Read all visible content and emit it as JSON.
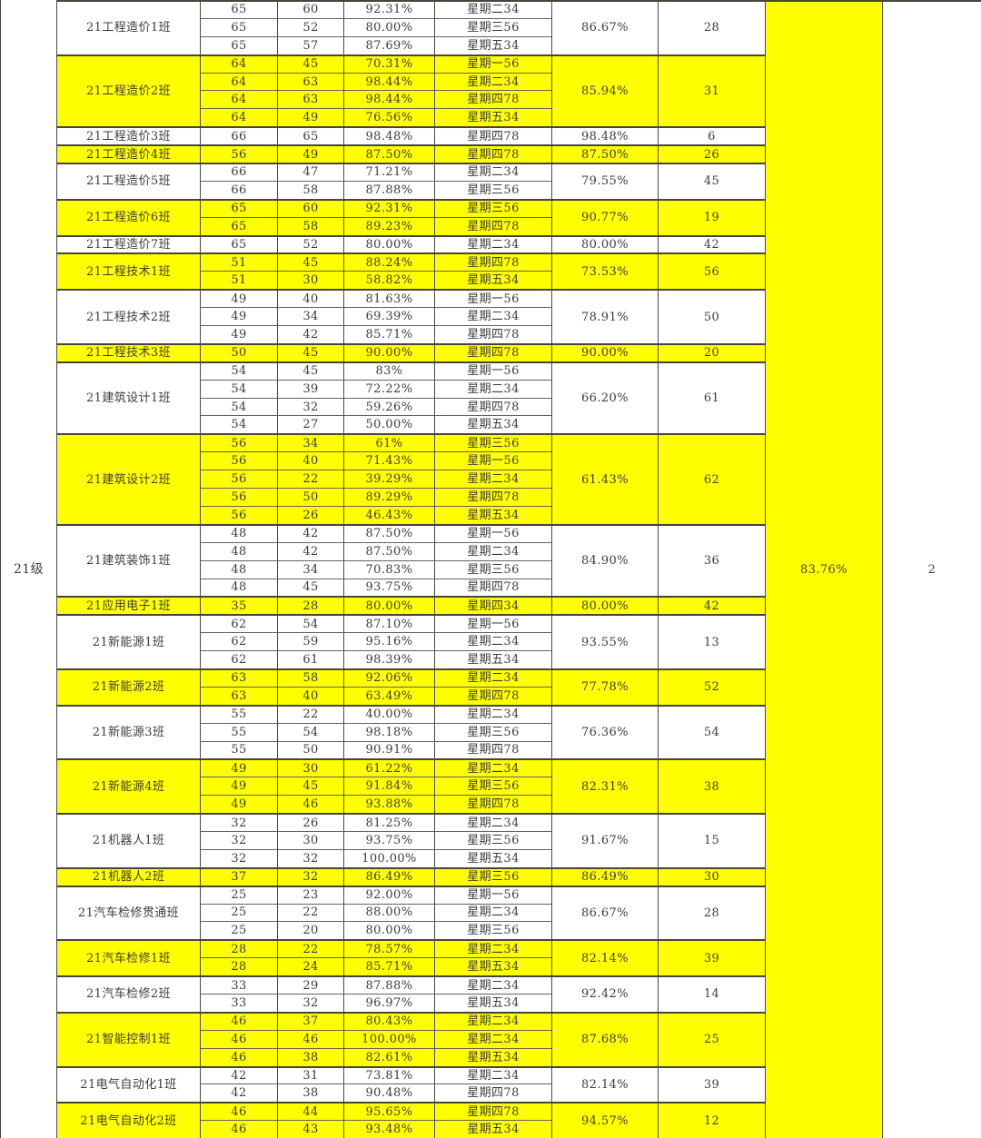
{
  "colors": {
    "highlight": "#ffff00",
    "row_default": "#ffffff",
    "grid_line": "#4b4b41"
  },
  "table": {
    "grade": {
      "label": "21级",
      "average": "83.76%",
      "rank": "2"
    },
    "groups": [
      {
        "name": "21工程造价1班",
        "highlight": false,
        "average": "86.67%",
        "rank": "28",
        "rows": [
          {
            "total": "65",
            "attended": "60",
            "rate": "92.31%",
            "day": "星期二34"
          },
          {
            "total": "65",
            "attended": "52",
            "rate": "80.00%",
            "day": "星期三56"
          },
          {
            "total": "65",
            "attended": "57",
            "rate": "87.69%",
            "day": "星期五34"
          }
        ]
      },
      {
        "name": "21工程造价2班",
        "highlight": true,
        "average": "85.94%",
        "rank": "31",
        "rows": [
          {
            "total": "64",
            "attended": "45",
            "rate": "70.31%",
            "day": "星期一56"
          },
          {
            "total": "64",
            "attended": "63",
            "rate": "98.44%",
            "day": "星期二34"
          },
          {
            "total": "64",
            "attended": "63",
            "rate": "98.44%",
            "day": "星期四78"
          },
          {
            "total": "64",
            "attended": "49",
            "rate": "76.56%",
            "day": "星期五34"
          }
        ]
      },
      {
        "name": "21工程造价3班",
        "highlight": false,
        "average": "98.48%",
        "rank": "6",
        "rows": [
          {
            "total": "66",
            "attended": "65",
            "rate": "98.48%",
            "day": "星期四78"
          }
        ]
      },
      {
        "name": "21工程造价4班",
        "highlight": true,
        "average": "87.50%",
        "rank": "26",
        "rows": [
          {
            "total": "56",
            "attended": "49",
            "rate": "87.50%",
            "day": "星期四78"
          }
        ]
      },
      {
        "name": "21工程造价5班",
        "highlight": false,
        "average": "79.55%",
        "rank": "45",
        "rows": [
          {
            "total": "66",
            "attended": "47",
            "rate": "71.21%",
            "day": "星期二34"
          },
          {
            "total": "66",
            "attended": "58",
            "rate": "87.88%",
            "day": "星期三56"
          }
        ]
      },
      {
        "name": "21工程造价6班",
        "highlight": true,
        "average": "90.77%",
        "rank": "19",
        "rows": [
          {
            "total": "65",
            "attended": "60",
            "rate": "92.31%",
            "day": "星期三56"
          },
          {
            "total": "65",
            "attended": "58",
            "rate": "89.23%",
            "day": "星期四78"
          }
        ]
      },
      {
        "name": "21工程造价7班",
        "highlight": false,
        "average": "80.00%",
        "rank": "42",
        "rows": [
          {
            "total": "65",
            "attended": "52",
            "rate": "80.00%",
            "day": "星期二34"
          }
        ]
      },
      {
        "name": "21工程技术1班",
        "highlight": true,
        "average": "73.53%",
        "rank": "56",
        "rows": [
          {
            "total": "51",
            "attended": "45",
            "rate": "88.24%",
            "day": "星期四78"
          },
          {
            "total": "51",
            "attended": "30",
            "rate": "58.82%",
            "day": "星期五34"
          }
        ]
      },
      {
        "name": "21工程技术2班",
        "highlight": false,
        "average": "78.91%",
        "rank": "50",
        "rows": [
          {
            "total": "49",
            "attended": "40",
            "rate": "81.63%",
            "day": "星期一56"
          },
          {
            "total": "49",
            "attended": "34",
            "rate": "69.39%",
            "day": "星期二34"
          },
          {
            "total": "49",
            "attended": "42",
            "rate": "85.71%",
            "day": "星期四78"
          }
        ]
      },
      {
        "name": "21工程技术3班",
        "highlight": true,
        "average": "90.00%",
        "rank": "20",
        "rows": [
          {
            "total": "50",
            "attended": "45",
            "rate": "90.00%",
            "day": "星期四78"
          }
        ]
      },
      {
        "name": "21建筑设计1班",
        "highlight": false,
        "average": "66.20%",
        "rank": "61",
        "rows": [
          {
            "total": "54",
            "attended": "45",
            "rate": "83%",
            "day": "星期一56"
          },
          {
            "total": "54",
            "attended": "39",
            "rate": "72.22%",
            "day": "星期二34"
          },
          {
            "total": "54",
            "attended": "32",
            "rate": "59.26%",
            "day": "星期四78"
          },
          {
            "total": "54",
            "attended": "27",
            "rate": "50.00%",
            "day": "星期五34"
          }
        ]
      },
      {
        "name": "21建筑设计2班",
        "highlight": true,
        "average": "61.43%",
        "rank": "62",
        "rows": [
          {
            "total": "56",
            "attended": "34",
            "rate": "61%",
            "day": "星期三56"
          },
          {
            "total": "56",
            "attended": "40",
            "rate": "71.43%",
            "day": "星期一56"
          },
          {
            "total": "56",
            "attended": "22",
            "rate": "39.29%",
            "day": "星期二34"
          },
          {
            "total": "56",
            "attended": "50",
            "rate": "89.29%",
            "day": "星期四78"
          },
          {
            "total": "56",
            "attended": "26",
            "rate": "46.43%",
            "day": "星期五34"
          }
        ]
      },
      {
        "name": "21建筑装饰1班",
        "highlight": false,
        "average": "84.90%",
        "rank": "36",
        "rows": [
          {
            "total": "48",
            "attended": "42",
            "rate": "87.50%",
            "day": "星期一56"
          },
          {
            "total": "48",
            "attended": "42",
            "rate": "87.50%",
            "day": "星期二34"
          },
          {
            "total": "48",
            "attended": "34",
            "rate": "70.83%",
            "day": "星期三56"
          },
          {
            "total": "48",
            "attended": "45",
            "rate": "93.75%",
            "day": "星期四78"
          }
        ]
      },
      {
        "name": "21应用电子1班",
        "highlight": true,
        "average": "80.00%",
        "rank": "42",
        "rows": [
          {
            "total": "35",
            "attended": "28",
            "rate": "80.00%",
            "day": "星期四34"
          }
        ]
      },
      {
        "name": "21新能源1班",
        "highlight": false,
        "average": "93.55%",
        "rank": "13",
        "rows": [
          {
            "total": "62",
            "attended": "54",
            "rate": "87.10%",
            "day": "星期一56"
          },
          {
            "total": "62",
            "attended": "59",
            "rate": "95.16%",
            "day": "星期二34"
          },
          {
            "total": "62",
            "attended": "61",
            "rate": "98.39%",
            "day": "星期五34"
          }
        ]
      },
      {
        "name": "21新能源2班",
        "highlight": true,
        "average": "77.78%",
        "rank": "52",
        "rows": [
          {
            "total": "63",
            "attended": "58",
            "rate": "92.06%",
            "day": "星期二34"
          },
          {
            "total": "63",
            "attended": "40",
            "rate": "63.49%",
            "day": "星期四78"
          }
        ]
      },
      {
        "name": "21新能源3班",
        "highlight": false,
        "average": "76.36%",
        "rank": "54",
        "rows": [
          {
            "total": "55",
            "attended": "22",
            "rate": "40.00%",
            "day": "星期二34"
          },
          {
            "total": "55",
            "attended": "54",
            "rate": "98.18%",
            "day": "星期三56"
          },
          {
            "total": "55",
            "attended": "50",
            "rate": "90.91%",
            "day": "星期四78"
          }
        ]
      },
      {
        "name": "21新能源4班",
        "highlight": true,
        "average": "82.31%",
        "rank": "38",
        "rows": [
          {
            "total": "49",
            "attended": "30",
            "rate": "61.22%",
            "day": "星期二34"
          },
          {
            "total": "49",
            "attended": "45",
            "rate": "91.84%",
            "day": "星期三56"
          },
          {
            "total": "49",
            "attended": "46",
            "rate": "93.88%",
            "day": "星期四78"
          }
        ]
      },
      {
        "name": "21机器人1班",
        "highlight": false,
        "average": "91.67%",
        "rank": "15",
        "rows": [
          {
            "total": "32",
            "attended": "26",
            "rate": "81.25%",
            "day": "星期二34"
          },
          {
            "total": "32",
            "attended": "30",
            "rate": "93.75%",
            "day": "星期三56"
          },
          {
            "total": "32",
            "attended": "32",
            "rate": "100.00%",
            "day": "星期五34"
          }
        ]
      },
      {
        "name": "21机器人2班",
        "highlight": true,
        "average": "86.49%",
        "rank": "30",
        "rows": [
          {
            "total": "37",
            "attended": "32",
            "rate": "86.49%",
            "day": "星期三56"
          }
        ]
      },
      {
        "name": "21汽车检修贯通班",
        "highlight": false,
        "average": "86.67%",
        "rank": "28",
        "rows": [
          {
            "total": "25",
            "attended": "23",
            "rate": "92.00%",
            "day": "星期一56"
          },
          {
            "total": "25",
            "attended": "22",
            "rate": "88.00%",
            "day": "星期二34"
          },
          {
            "total": "25",
            "attended": "20",
            "rate": "80.00%",
            "day": "星期三56"
          }
        ]
      },
      {
        "name": "21汽车检修1班",
        "highlight": true,
        "average": "82.14%",
        "rank": "39",
        "rows": [
          {
            "total": "28",
            "attended": "22",
            "rate": "78.57%",
            "day": "星期二34"
          },
          {
            "total": "28",
            "attended": "24",
            "rate": "85.71%",
            "day": "星期五34"
          }
        ]
      },
      {
        "name": "21汽车检修2班",
        "highlight": false,
        "average": "92.42%",
        "rank": "14",
        "rows": [
          {
            "total": "33",
            "attended": "29",
            "rate": "87.88%",
            "day": "星期二34"
          },
          {
            "total": "33",
            "attended": "32",
            "rate": "96.97%",
            "day": "星期五34"
          }
        ]
      },
      {
        "name": "21智能控制1班",
        "highlight": true,
        "average": "87.68%",
        "rank": "25",
        "rows": [
          {
            "total": "46",
            "attended": "37",
            "rate": "80.43%",
            "day": "星期二34"
          },
          {
            "total": "46",
            "attended": "46",
            "rate": "100.00%",
            "day": "星期二34"
          },
          {
            "total": "46",
            "attended": "38",
            "rate": "82.61%",
            "day": "星期五34"
          }
        ]
      },
      {
        "name": "21电气自动化1班",
        "highlight": false,
        "average": "82.14%",
        "rank": "39",
        "rows": [
          {
            "total": "42",
            "attended": "31",
            "rate": "73.81%",
            "day": "星期二34"
          },
          {
            "total": "42",
            "attended": "38",
            "rate": "90.48%",
            "day": "星期四78"
          }
        ]
      },
      {
        "name": "21电气自动化2班",
        "highlight": true,
        "average": "94.57%",
        "rank": "12",
        "rows": [
          {
            "total": "46",
            "attended": "44",
            "rate": "95.65%",
            "day": "星期四78"
          },
          {
            "total": "46",
            "attended": "43",
            "rate": "93.48%",
            "day": "星期五34"
          }
        ]
      }
    ]
  }
}
